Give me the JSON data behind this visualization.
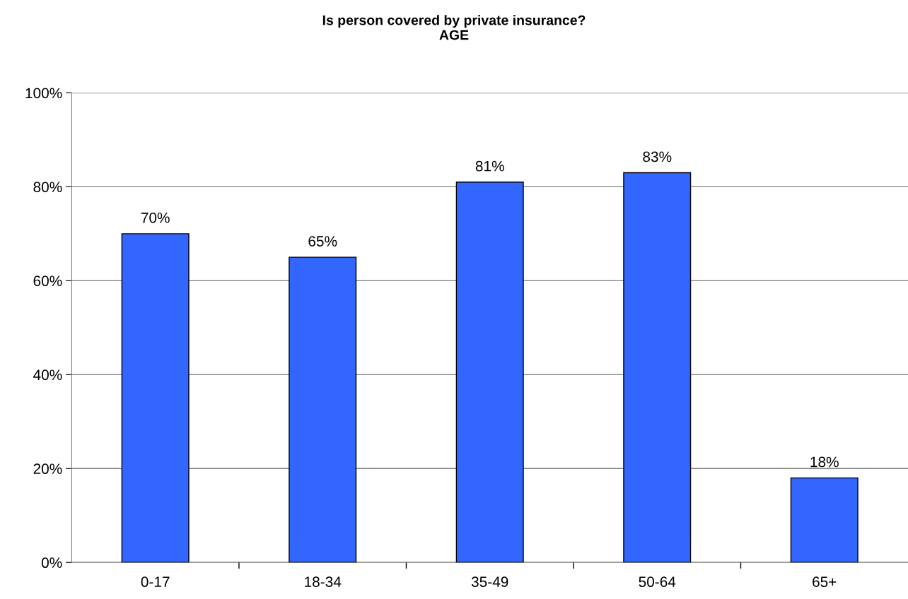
{
  "chart_data": {
    "type": "bar",
    "title": "Is person covered by private insurance?\nAGE",
    "categories": [
      "0-17",
      "18-34",
      "35-49",
      "50-64",
      "65+"
    ],
    "values": [
      70,
      65,
      81,
      83,
      18
    ],
    "value_labels": [
      "70%",
      "65%",
      "81%",
      "83%",
      "18%"
    ],
    "color": "#3366ff",
    "ylim": [
      0,
      100
    ],
    "yticks": [
      {
        "value": 0,
        "label": "0%"
      },
      {
        "value": 20,
        "label": "20%"
      },
      {
        "value": 40,
        "label": "40%"
      },
      {
        "value": 60,
        "label": "60%"
      },
      {
        "value": 80,
        "label": "80%"
      },
      {
        "value": 100,
        "label": "100%"
      }
    ],
    "grid": "y"
  }
}
